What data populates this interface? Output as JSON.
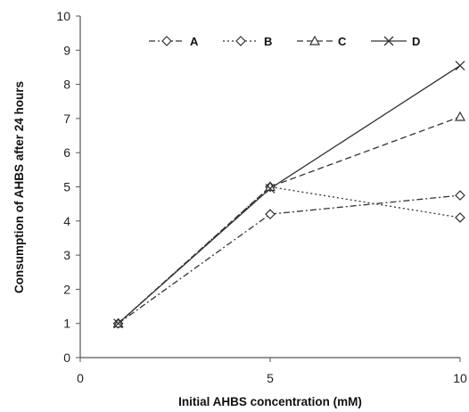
{
  "chart_data": {
    "type": "line",
    "title": "",
    "xlabel": "Initial AHBS concentration (mM)",
    "ylabel": "Consumption of AHBS after 24 hours",
    "xlim": [
      0,
      10
    ],
    "ylim": [
      0,
      10
    ],
    "x_ticks": [
      "0",
      "5",
      "10"
    ],
    "y_ticks": [
      "0",
      "1",
      "2",
      "3",
      "4",
      "5",
      "6",
      "7",
      "8",
      "9",
      "10"
    ],
    "legend_position": "top",
    "grid": false,
    "series": [
      {
        "name": "A",
        "x": [
          1,
          5,
          10
        ],
        "y": [
          1.0,
          4.2,
          4.75
        ],
        "marker": "diamond",
        "line": "dashdot",
        "color": "#333333"
      },
      {
        "name": "B",
        "x": [
          1,
          5,
          10
        ],
        "y": [
          1.0,
          5.0,
          4.1
        ],
        "marker": "diamond",
        "line": "dotted",
        "color": "#333333"
      },
      {
        "name": "C",
        "x": [
          1,
          5,
          10
        ],
        "y": [
          1.0,
          5.0,
          7.05
        ],
        "marker": "triangle",
        "line": "dashed",
        "color": "#333333"
      },
      {
        "name": "D",
        "x": [
          1,
          5,
          10
        ],
        "y": [
          1.0,
          4.95,
          8.55
        ],
        "marker": "cross",
        "line": "solid",
        "color": "#333333"
      }
    ]
  }
}
